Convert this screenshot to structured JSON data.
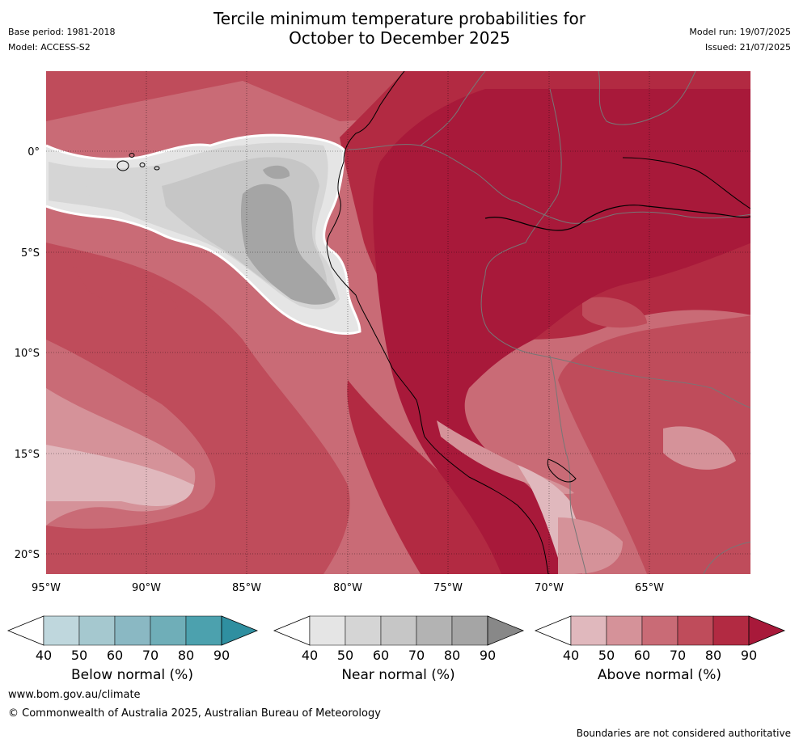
{
  "header": {
    "title_line1": "Tercile minimum temperature probabilities for",
    "title_line2": "October to December 2025",
    "base_period": "Base period: 1981-2018",
    "model": "Model: ACCESS-S2",
    "model_run": "Model run: 19/07/2025",
    "issued": "Issued: 21/07/2025"
  },
  "map": {
    "lon_labels": [
      "95°W",
      "90°W",
      "85°W",
      "80°W",
      "75°W",
      "70°W",
      "65°W"
    ],
    "lat_labels": [
      "0°",
      "5°S",
      "10°S",
      "15°S",
      "20°S"
    ],
    "colors": {
      "above_40": "#e0b8bd",
      "above_50": "#d59299",
      "above_60": "#c96b76",
      "above_70": "#bf4c5b",
      "above_80": "#b22a42",
      "above_90": "#a8193a",
      "near_40": "#e5e5e5",
      "near_50": "#d5d5d5",
      "near_60": "#c6c6c6",
      "near_70": "#b3b3b3",
      "near_80": "#a5a5a5",
      "near_90": "#888888",
      "below_40": "#bfd7dd",
      "below_50": "#a5c8cf",
      "below_60": "#8ab8c3",
      "below_70": "#6faeb8",
      "below_80": "#4ca1ae",
      "below_90": "#2f8fa0"
    }
  },
  "colorbars": [
    {
      "title": "Below normal (%)",
      "ticks": [
        "40",
        "50",
        "60",
        "70",
        "80",
        "90"
      ]
    },
    {
      "title": "Near normal (%)",
      "ticks": [
        "40",
        "50",
        "60",
        "70",
        "80",
        "90"
      ]
    },
    {
      "title": "Above normal (%)",
      "ticks": [
        "40",
        "50",
        "60",
        "70",
        "80",
        "90"
      ]
    }
  ],
  "footer": {
    "url": "www.bom.gov.au/climate",
    "copyright": "© Commonwealth of Australia 2025, Australian Bureau of Meteorology",
    "disclaimer": "Boundaries are not considered authoritative"
  }
}
